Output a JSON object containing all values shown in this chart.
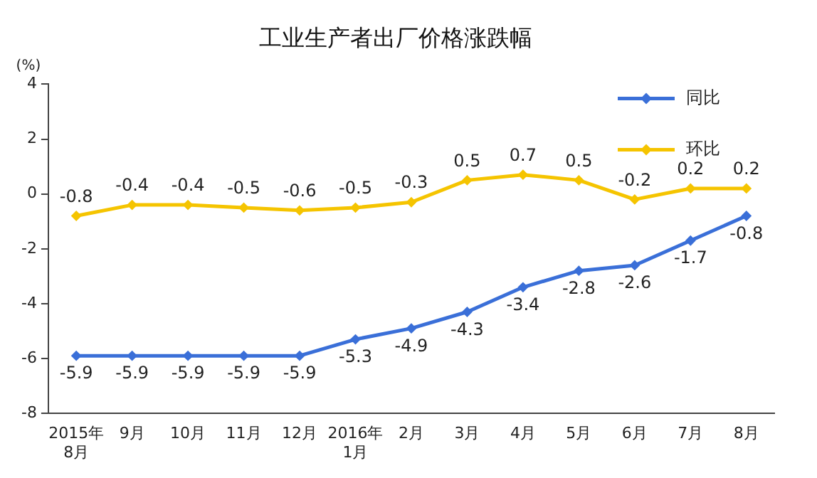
{
  "chart_data": {
    "type": "line",
    "title": "工业生产者出厂价格涨跌幅",
    "ylabel": "(%)",
    "categories": [
      "2015年\n8月",
      "9月",
      "10月",
      "11月",
      "12月",
      "2016年\n1月",
      "2月",
      "3月",
      "4月",
      "5月",
      "6月",
      "7月",
      "8月"
    ],
    "series": [
      {
        "name": "同比",
        "color": "#3a6fd8",
        "values": [
          -5.9,
          -5.9,
          -5.9,
          -5.9,
          -5.9,
          -5.3,
          -4.9,
          -4.3,
          -3.4,
          -2.8,
          -2.6,
          -1.7,
          -0.8
        ]
      },
      {
        "name": "环比",
        "color": "#f5c400",
        "values": [
          -0.8,
          -0.4,
          -0.4,
          -0.5,
          -0.6,
          -0.5,
          -0.3,
          0.5,
          0.7,
          0.5,
          -0.2,
          0.2,
          0.2
        ]
      }
    ],
    "ylim": [
      -8,
      4
    ],
    "yticks": [
      -8,
      -6,
      -4,
      -2,
      0,
      2,
      4
    ],
    "legend": "top right",
    "marker": "diamond",
    "line_style": "solid",
    "data_labels": true,
    "grid": false
  }
}
